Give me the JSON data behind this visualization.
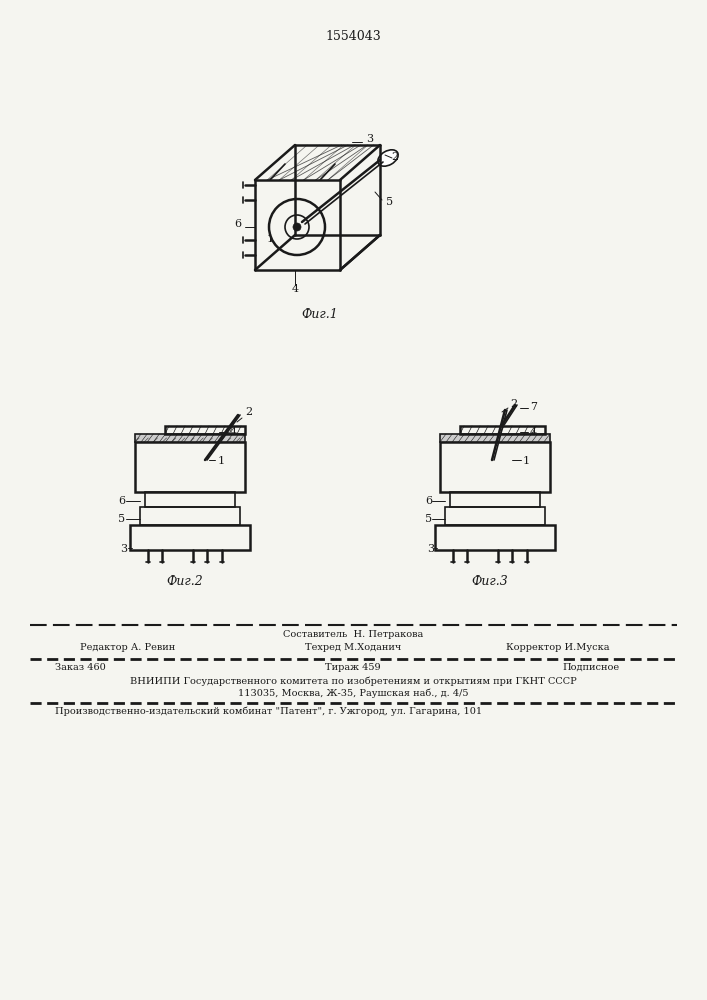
{
  "patent_number": "1554043",
  "background_color": "#f5f5f0",
  "line_color": "#1a1a1a",
  "hatch_color": "#1a1a1a",
  "fig1_label": "Фиг.1",
  "fig2_label": "Фиг.2",
  "fig3_label": "Фиг.3",
  "footer_line1_center": "Составитель  Н. Петракова",
  "footer_line2_left": "Редактор А. Ревин",
  "footer_line2_center": "Техред М.Ходанич",
  "footer_line2_right": "Корректор И.Муска",
  "footer_line3_left": "Заказ 460",
  "footer_line3_center": "Тираж 459",
  "footer_line3_right": "Подписное",
  "footer_line4": "ВНИИПИ Государственного комитета по изобретениям и открытиям при ГКНТ СССР",
  "footer_line5": "113035, Москва, Ж-35, Раушская наб., д. 4/5",
  "footer_line6": "Производственно-издательский комбинат \"Патент\", г. Ужгород, ул. Гагарина, 101",
  "font_size_patent": 9,
  "font_size_fig": 9,
  "font_size_footer": 7,
  "font_size_label": 8
}
